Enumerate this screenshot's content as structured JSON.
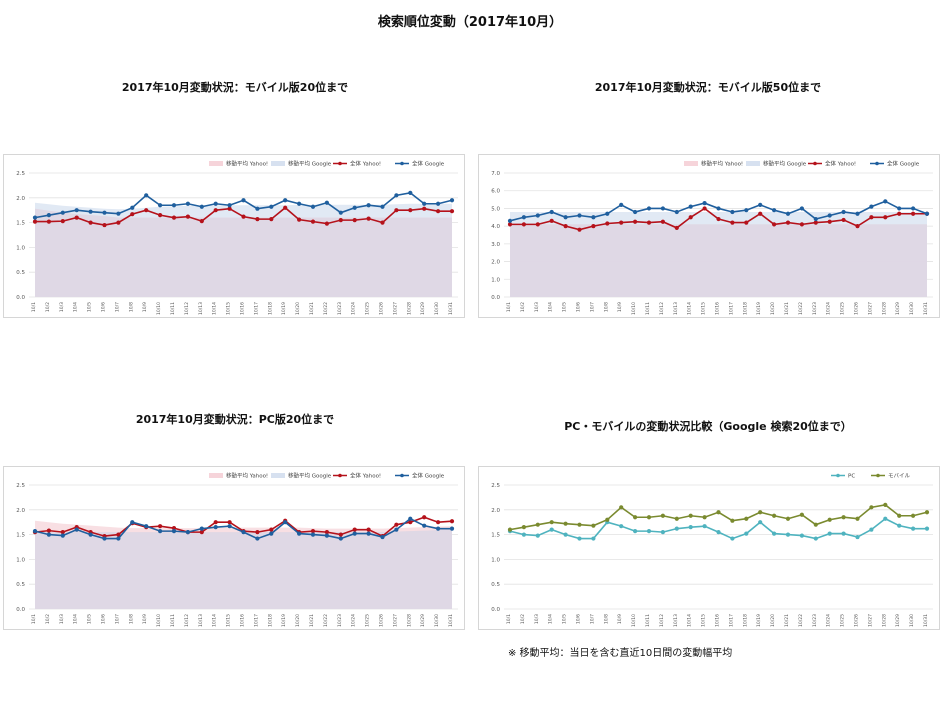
{
  "page": {
    "title": "検索順位変動（2017年10月）",
    "note": "※ 移動平均：当日を含む直近10日間の変動幅平均"
  },
  "colors": {
    "yahoo": "#b5121b",
    "google": "#1f5f9e",
    "yahoo_avg": "#f6d4da",
    "google_avg": "#d7e1f0",
    "pc": "#4fb3bf",
    "mobile": "#7a8a2f"
  },
  "chart_data": [
    {
      "type": "line",
      "title": "2017年10月変動状況：モバイル版20位まで",
      "x": [
        "10/1",
        "10/2",
        "10/3",
        "10/4",
        "10/5",
        "10/6",
        "10/7",
        "10/8",
        "10/9",
        "10/10",
        "10/11",
        "10/12",
        "10/13",
        "10/14",
        "10/15",
        "10/16",
        "10/17",
        "10/18",
        "10/19",
        "10/20",
        "10/21",
        "10/22",
        "10/23",
        "10/24",
        "10/25",
        "10/26",
        "10/27",
        "10/28",
        "10/29",
        "10/30",
        "10/31"
      ],
      "ylim": [
        0,
        2.5
      ],
      "yticks": [
        "0.0",
        "0.5",
        "1.0",
        "1.5",
        "2.0",
        "2.5"
      ],
      "legend": [
        "移動平均 Yahoo!",
        "移動平均 Google",
        "全体 Yahoo!",
        "全体 Google"
      ],
      "legend_placement": "top",
      "series": [
        {
          "name": "移動平均 Yahoo!",
          "kind": "area",
          "values": [
            1.78,
            1.74,
            1.7,
            1.67,
            1.65,
            1.63,
            1.6,
            1.6,
            1.6,
            1.6,
            1.6,
            1.6,
            1.6,
            1.6,
            1.6,
            1.6,
            1.6,
            1.6,
            1.6,
            1.6,
            1.6,
            1.6,
            1.6,
            1.6,
            1.6,
            1.6,
            1.6,
            1.6,
            1.6,
            1.6,
            1.6
          ]
        },
        {
          "name": "移動平均 Google",
          "kind": "area",
          "values": [
            1.9,
            1.87,
            1.84,
            1.82,
            1.8,
            1.78,
            1.77,
            1.78,
            1.8,
            1.82,
            1.83,
            1.84,
            1.85,
            1.85,
            1.85,
            1.85,
            1.85,
            1.85,
            1.85,
            1.86,
            1.86,
            1.86,
            1.86,
            1.86,
            1.86,
            1.86,
            1.87,
            1.88,
            1.88,
            1.88,
            1.88
          ]
        },
        {
          "name": "全体 Yahoo!",
          "kind": "line",
          "values": [
            1.52,
            1.52,
            1.53,
            1.6,
            1.5,
            1.45,
            1.5,
            1.67,
            1.75,
            1.65,
            1.6,
            1.62,
            1.53,
            1.75,
            1.78,
            1.62,
            1.57,
            1.57,
            1.8,
            1.56,
            1.52,
            1.48,
            1.55,
            1.55,
            1.58,
            1.5,
            1.75,
            1.75,
            1.78,
            1.73,
            1.73
          ]
        },
        {
          "name": "全体 Google",
          "kind": "line",
          "values": [
            1.6,
            1.65,
            1.7,
            1.75,
            1.72,
            1.7,
            1.68,
            1.8,
            2.05,
            1.85,
            1.85,
            1.88,
            1.82,
            1.88,
            1.85,
            1.95,
            1.78,
            1.82,
            1.95,
            1.88,
            1.82,
            1.9,
            1.7,
            1.8,
            1.85,
            1.82,
            2.05,
            2.1,
            1.88,
            1.88,
            1.95
          ]
        }
      ]
    },
    {
      "type": "line",
      "title": "2017年10月変動状況：モバイル版50位まで",
      "x": [
        "10/1",
        "10/2",
        "10/3",
        "10/4",
        "10/5",
        "10/6",
        "10/7",
        "10/8",
        "10/9",
        "10/10",
        "10/11",
        "10/12",
        "10/13",
        "10/14",
        "10/15",
        "10/16",
        "10/17",
        "10/18",
        "10/19",
        "10/20",
        "10/21",
        "10/22",
        "10/23",
        "10/24",
        "10/25",
        "10/26",
        "10/27",
        "10/28",
        "10/29",
        "10/30",
        "10/31"
      ],
      "ylim": [
        0,
        7.0
      ],
      "yticks": [
        "0.0",
        "1.0",
        "2.0",
        "3.0",
        "4.0",
        "5.0",
        "6.0",
        "7.0"
      ],
      "legend": [
        "移動平均 Yahoo!",
        "移動平均 Google",
        "全体 Yahoo!",
        "全体 Google"
      ],
      "legend_placement": "top",
      "series": [
        {
          "name": "移動平均 Yahoo!",
          "kind": "area",
          "values": [
            4.1,
            4.1,
            4.1,
            4.1,
            4.1,
            4.1,
            4.1,
            4.1,
            4.1,
            4.1,
            4.1,
            4.1,
            4.1,
            4.1,
            4.1,
            4.1,
            4.1,
            4.1,
            4.1,
            4.1,
            4.1,
            4.1,
            4.1,
            4.1,
            4.1,
            4.1,
            4.1,
            4.1,
            4.1,
            4.1,
            4.1
          ]
        },
        {
          "name": "移動平均 Google",
          "kind": "area",
          "values": [
            4.8,
            4.8,
            4.8,
            4.8,
            4.8,
            4.8,
            4.8,
            4.8,
            4.8,
            4.8,
            4.8,
            4.8,
            4.8,
            4.8,
            4.8,
            4.8,
            4.8,
            4.8,
            4.8,
            4.8,
            4.8,
            4.8,
            4.8,
            4.8,
            4.8,
            4.8,
            4.8,
            4.8,
            4.8,
            4.8,
            4.8
          ]
        },
        {
          "name": "全体 Yahoo!",
          "kind": "line",
          "values": [
            4.1,
            4.1,
            4.1,
            4.3,
            4.0,
            3.8,
            4.0,
            4.15,
            4.2,
            4.25,
            4.2,
            4.25,
            3.9,
            4.5,
            5.0,
            4.4,
            4.2,
            4.2,
            4.7,
            4.1,
            4.2,
            4.1,
            4.2,
            4.25,
            4.35,
            4.0,
            4.5,
            4.5,
            4.7,
            4.7,
            4.7
          ]
        },
        {
          "name": "全体 Google",
          "kind": "line",
          "values": [
            4.3,
            4.5,
            4.6,
            4.8,
            4.5,
            4.6,
            4.5,
            4.7,
            5.2,
            4.8,
            5.0,
            5.0,
            4.8,
            5.1,
            5.3,
            5.0,
            4.8,
            4.9,
            5.2,
            4.9,
            4.7,
            5.0,
            4.4,
            4.6,
            4.8,
            4.7,
            5.1,
            5.4,
            5.0,
            5.0,
            4.7
          ]
        }
      ]
    },
    {
      "type": "line",
      "title": "2017年10月変動状況：PC版20位まで",
      "x": [
        "10/1",
        "10/2",
        "10/3",
        "10/4",
        "10/5",
        "10/6",
        "10/7",
        "10/8",
        "10/9",
        "10/10",
        "10/11",
        "10/12",
        "10/13",
        "10/14",
        "10/15",
        "10/16",
        "10/17",
        "10/18",
        "10/19",
        "10/20",
        "10/21",
        "10/22",
        "10/23",
        "10/24",
        "10/25",
        "10/26",
        "10/27",
        "10/28",
        "10/29",
        "10/30",
        "10/31"
      ],
      "ylim": [
        0,
        2.5
      ],
      "yticks": [
        "0.0",
        "0.5",
        "1.0",
        "1.5",
        "2.0",
        "2.5"
      ],
      "legend": [
        "移動平均 Yahoo!",
        "移動平均 Google",
        "全体 Yahoo!",
        "全体 Google"
      ],
      "legend_placement": "top",
      "series": [
        {
          "name": "移動平均 Yahoo!",
          "kind": "area",
          "values": [
            1.78,
            1.75,
            1.72,
            1.7,
            1.68,
            1.66,
            1.64,
            1.63,
            1.63,
            1.63,
            1.63,
            1.63,
            1.63,
            1.63,
            1.64,
            1.64,
            1.64,
            1.64,
            1.64,
            1.64,
            1.63,
            1.62,
            1.62,
            1.62,
            1.62,
            1.62,
            1.63,
            1.64,
            1.65,
            1.66,
            1.67
          ]
        },
        {
          "name": "移動平均 Google",
          "kind": "area",
          "values": [
            1.55,
            1.55,
            1.55,
            1.55,
            1.55,
            1.55,
            1.55,
            1.55,
            1.55,
            1.55,
            1.55,
            1.55,
            1.55,
            1.55,
            1.55,
            1.55,
            1.55,
            1.55,
            1.55,
            1.55,
            1.55,
            1.55,
            1.55,
            1.55,
            1.55,
            1.55,
            1.56,
            1.57,
            1.58,
            1.59,
            1.6
          ]
        },
        {
          "name": "全体 Yahoo!",
          "kind": "line",
          "values": [
            1.55,
            1.58,
            1.55,
            1.65,
            1.55,
            1.47,
            1.5,
            1.73,
            1.65,
            1.67,
            1.63,
            1.55,
            1.55,
            1.75,
            1.75,
            1.57,
            1.55,
            1.6,
            1.78,
            1.55,
            1.57,
            1.55,
            1.5,
            1.6,
            1.6,
            1.47,
            1.7,
            1.75,
            1.85,
            1.75,
            1.77
          ]
        },
        {
          "name": "全体 Google",
          "kind": "line",
          "values": [
            1.57,
            1.5,
            1.48,
            1.6,
            1.5,
            1.42,
            1.42,
            1.75,
            1.67,
            1.57,
            1.57,
            1.55,
            1.62,
            1.65,
            1.67,
            1.55,
            1.42,
            1.52,
            1.75,
            1.52,
            1.5,
            1.48,
            1.42,
            1.52,
            1.52,
            1.45,
            1.6,
            1.82,
            1.68,
            1.62,
            1.62
          ]
        }
      ]
    },
    {
      "type": "line",
      "title": "PC・モバイルの変動状況比較（Google 検索20位まで）",
      "x": [
        "10/1",
        "10/2",
        "10/3",
        "10/4",
        "10/5",
        "10/6",
        "10/7",
        "10/8",
        "10/9",
        "10/10",
        "10/11",
        "10/12",
        "10/13",
        "10/14",
        "10/15",
        "10/16",
        "10/17",
        "10/18",
        "10/19",
        "10/20",
        "10/21",
        "10/22",
        "10/23",
        "10/24",
        "10/25",
        "10/26",
        "10/27",
        "10/28",
        "10/29",
        "10/30",
        "10/31"
      ],
      "ylim": [
        0,
        2.5
      ],
      "yticks": [
        "0.0",
        "0.5",
        "1.0",
        "1.5",
        "2.0",
        "2.5"
      ],
      "legend": [
        "PC",
        "モバイル"
      ],
      "legend_placement": "top-right",
      "series": [
        {
          "name": "PC",
          "kind": "line",
          "values": [
            1.57,
            1.5,
            1.48,
            1.6,
            1.5,
            1.42,
            1.42,
            1.75,
            1.67,
            1.57,
            1.57,
            1.55,
            1.62,
            1.65,
            1.67,
            1.55,
            1.42,
            1.52,
            1.75,
            1.52,
            1.5,
            1.48,
            1.42,
            1.52,
            1.52,
            1.45,
            1.6,
            1.82,
            1.68,
            1.62,
            1.62
          ]
        },
        {
          "name": "モバイル",
          "kind": "line",
          "values": [
            1.6,
            1.65,
            1.7,
            1.75,
            1.72,
            1.7,
            1.68,
            1.8,
            2.05,
            1.85,
            1.85,
            1.88,
            1.82,
            1.88,
            1.85,
            1.95,
            1.78,
            1.82,
            1.95,
            1.88,
            1.82,
            1.9,
            1.7,
            1.8,
            1.85,
            1.82,
            2.05,
            2.1,
            1.88,
            1.88,
            1.95
          ]
        }
      ]
    }
  ]
}
